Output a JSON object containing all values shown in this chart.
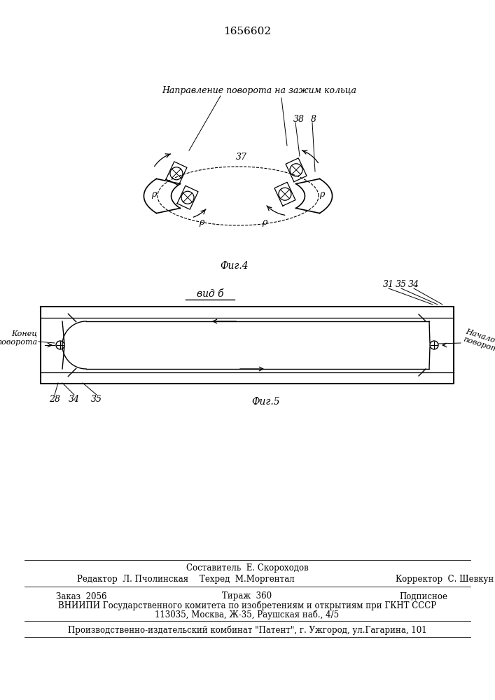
{
  "patent_number": "1656602",
  "fig4_label": "Фиг.4",
  "fig5_label": "Фиг.5",
  "vid_label": "вид б",
  "direction_text": "Направление поворота на зажим кольца",
  "konets_text": "Конец\nповорота",
  "nachalo_text": "Начало\nповорота",
  "footer_sostavitel": "Составитель  Е. Скороходов",
  "footer_redaktor": "Редактор  Л. Пчолинская",
  "footer_tehred": "Техред  М.Моргентал",
  "footer_korrektor": "Корректор  С. Шевкун",
  "footer_zakaz": "Заказ  2056",
  "footer_tirazh": "Тираж  360",
  "footer_podpisnoe": "Подписное",
  "footer_vniipи": "ВНИИПИ Государственного комитета по изобретениям и открытиям при ГКНТ СССР",
  "footer_addr": "113035, Москва, Ж-35, Раушская наб., 4/5",
  "footer_kombinat": "Производственно-издательский комбинат \"Патент\", г. Ужгород, ул.Гагарина, 101",
  "bg_color": "#ffffff",
  "line_color": "#000000"
}
